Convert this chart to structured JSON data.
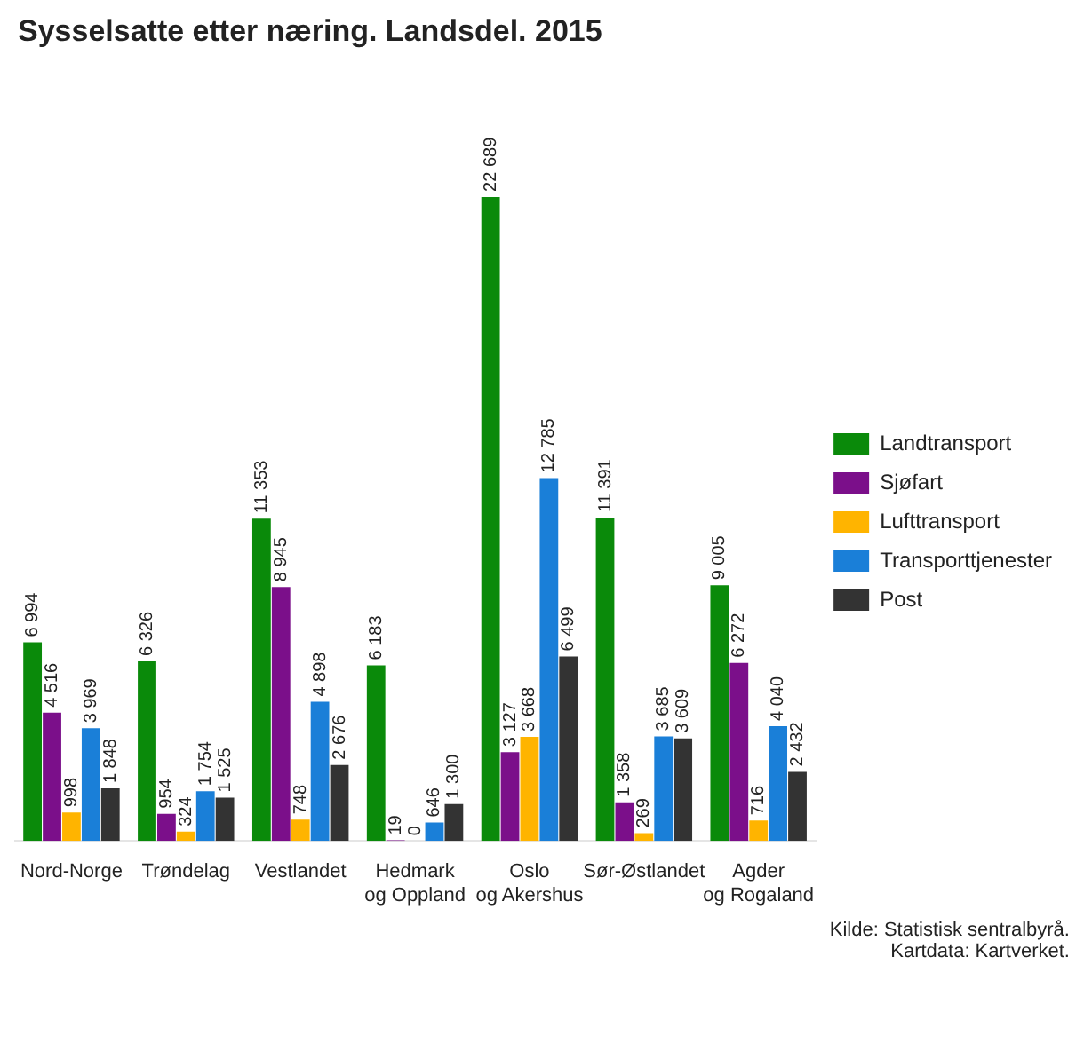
{
  "chart_data": {
    "type": "bar",
    "title": "Sysselsatte etter næring. Landsdel. 2015",
    "categories": [
      "Nord-Norge",
      "Trøndelag",
      "Vestlandet",
      "Hedmark og Oppland",
      "Oslo og Akershus",
      "Sør-Østlandet",
      "Agder og Rogaland"
    ],
    "series": [
      {
        "name": "Landtransport",
        "color": "#0a8a0a",
        "values": [
          6994,
          6326,
          11353,
          6183,
          22689,
          11391,
          9005
        ],
        "value_labels": [
          "6 994",
          "6 326",
          "11 353",
          "6 183",
          "22 689",
          "11 391",
          "9 005"
        ]
      },
      {
        "name": "Sjøfart",
        "color": "#7b0f8a",
        "values": [
          4516,
          954,
          8945,
          19,
          3127,
          1358,
          6272
        ],
        "value_labels": [
          "4 516",
          "954",
          "8 945",
          "19",
          "3 127",
          "1 358",
          "6 272"
        ]
      },
      {
        "name": "Lufttransport",
        "color": "#ffb400",
        "values": [
          998,
          324,
          748,
          0,
          3668,
          269,
          716
        ],
        "value_labels": [
          "998",
          "324",
          "748",
          "0",
          "3 668",
          "269",
          "716"
        ]
      },
      {
        "name": "Transporttjenester",
        "color": "#1a7fd8",
        "values": [
          3969,
          1754,
          4898,
          646,
          12785,
          3685,
          4040
        ],
        "value_labels": [
          "3 969",
          "1 754",
          "4 898",
          "646",
          "12 785",
          "3 685",
          "4 040"
        ]
      },
      {
        "name": "Post",
        "color": "#333333",
        "values": [
          1848,
          1525,
          2676,
          1300,
          6499,
          3609,
          2432
        ],
        "value_labels": [
          "1 848",
          "1 525",
          "2 676",
          "1 300",
          "6 499",
          "3 609",
          "2 432"
        ]
      }
    ],
    "legend": "right",
    "grid": false,
    "tick_labels": "x",
    "annotations": [
      "Kilde: Statistisk sentralbyrå.",
      "Kartdata: Kartverket."
    ]
  }
}
